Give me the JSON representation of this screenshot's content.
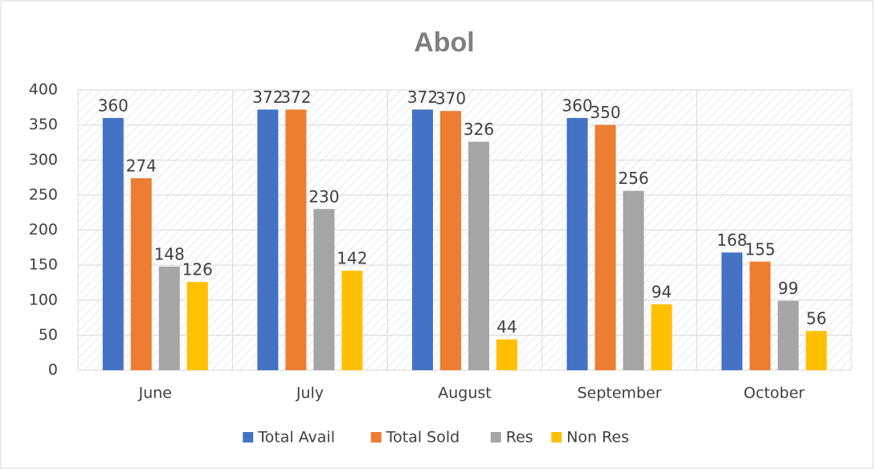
{
  "chart_data": {
    "type": "bar",
    "title": "Abol",
    "categories": [
      "June",
      "July",
      "August",
      "September",
      "October"
    ],
    "series": [
      {
        "name": "Total Avail",
        "color": "#4472c4",
        "values": [
          360,
          372,
          372,
          360,
          168
        ]
      },
      {
        "name": "Total Sold",
        "color": "#ed7d31",
        "values": [
          274,
          372,
          370,
          350,
          155
        ]
      },
      {
        "name": "Res",
        "color": "#a5a5a5",
        "values": [
          148,
          230,
          326,
          256,
          99
        ]
      },
      {
        "name": "Non Res",
        "color": "#ffc000",
        "values": [
          126,
          142,
          44,
          94,
          56
        ]
      }
    ],
    "ylim": [
      0,
      400
    ],
    "yticks": [
      0,
      50,
      100,
      150,
      200,
      250,
      300,
      350,
      400
    ],
    "grid": true,
    "legend": "bottom"
  }
}
